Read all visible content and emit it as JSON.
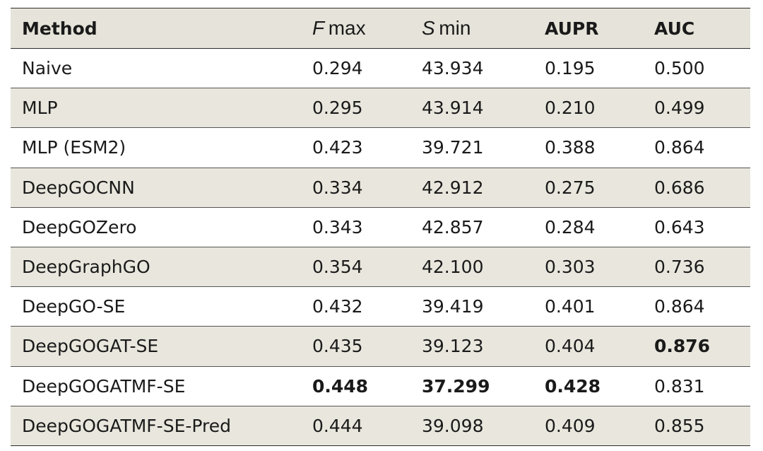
{
  "table": {
    "headers": [
      "Method",
      "F",
      "max",
      "S",
      "min",
      "AUPR",
      "AUC"
    ],
    "header_cells": {
      "method": "Method",
      "fmax_symbol": "F",
      "fmax_suffix": "max",
      "smin_symbol": "S",
      "smin_suffix": "min",
      "aupr": "AUPR",
      "auc": "AUC"
    },
    "rows": [
      {
        "method": "Naive",
        "fmax": "0.294",
        "smin": "43.934",
        "aupr": "0.195",
        "auc": "0.500"
      },
      {
        "method": "MLP",
        "fmax": "0.295",
        "smin": "43.914",
        "aupr": "0.210",
        "auc": "0.499"
      },
      {
        "method": "MLP (ESM2)",
        "fmax": "0.423",
        "smin": "39.721",
        "aupr": "0.388",
        "auc": "0.864"
      },
      {
        "method": "DeepGOCNN",
        "fmax": "0.334",
        "smin": "42.912",
        "aupr": "0.275",
        "auc": "0.686"
      },
      {
        "method": "DeepGOZero",
        "fmax": "0.343",
        "smin": "42.857",
        "aupr": "0.284",
        "auc": "0.643"
      },
      {
        "method": "DeepGraphGO",
        "fmax": "0.354",
        "smin": "42.100",
        "aupr": "0.303",
        "auc": "0.736"
      },
      {
        "method": "DeepGO-SE",
        "fmax": "0.432",
        "smin": "39.419",
        "aupr": "0.401",
        "auc": "0.864"
      },
      {
        "method": "DeepGOGAT-SE",
        "fmax": "0.435",
        "smin": "39.123",
        "aupr": "0.404",
        "auc": "0.876"
      },
      {
        "method": "DeepGOGATMF-SE",
        "fmax": "0.448",
        "smin": "37.299",
        "aupr": "0.428",
        "auc": "0.831"
      },
      {
        "method": "DeepGOGATMF-SE-Pred",
        "fmax": "0.444",
        "smin": "39.098",
        "aupr": "0.409",
        "auc": "0.855"
      }
    ],
    "bold_cells": {
      "fmax": "DeepGOGATMF-SE",
      "smin": "DeepGOGATMF-SE",
      "aupr": "DeepGOGATMF-SE",
      "auc": "DeepGOGAT-SE"
    },
    "colors": {
      "header_bg": "#e6e4da",
      "shade_bg": "#e9e7dd",
      "rule": "#2b2b2b",
      "divider": "#555555"
    }
  }
}
